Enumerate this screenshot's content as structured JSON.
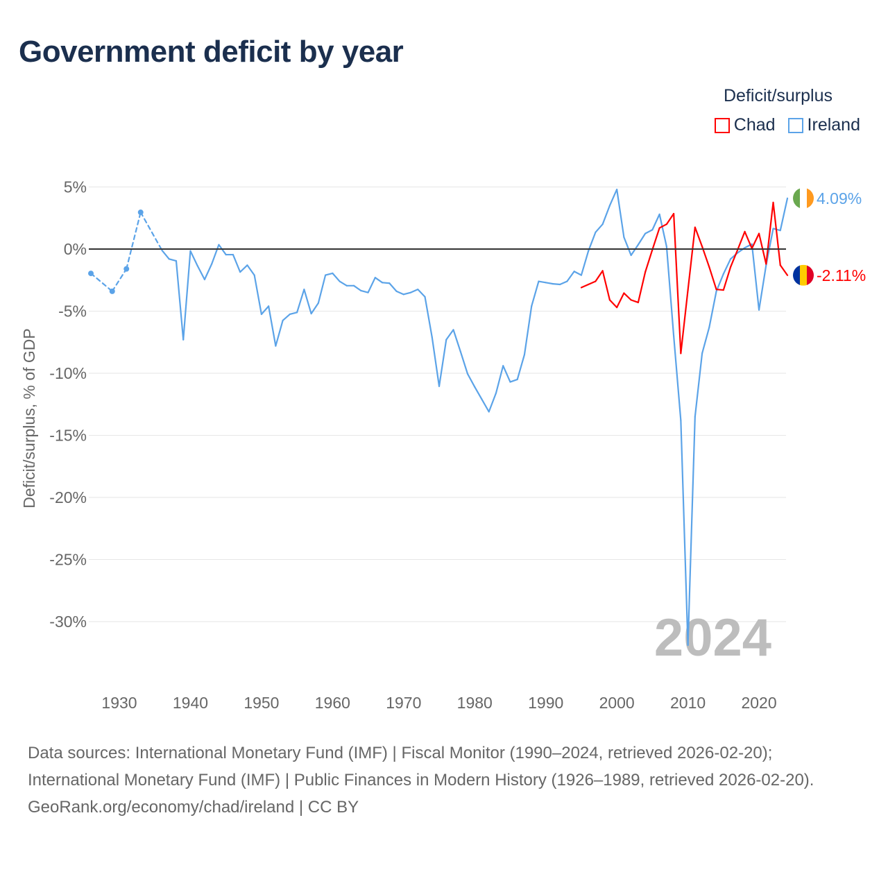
{
  "title": "Government deficit by year",
  "legend": {
    "title": "Deficit/surplus",
    "items": [
      {
        "name": "Chad",
        "color": "#ff0000"
      },
      {
        "name": "Ireland",
        "color": "#5ba3e8"
      }
    ]
  },
  "chart_data": {
    "type": "line",
    "title": "Government deficit by year",
    "ylabel": "Deficit/surplus, % of GDP",
    "xlabel": "",
    "ylim": [
      -33,
      5
    ],
    "xlim": [
      1926,
      2024
    ],
    "y_ticks": [
      "5%",
      "0%",
      "-5%",
      "-10%",
      "-15%",
      "-20%",
      "-25%",
      "-30%"
    ],
    "y_tick_values": [
      5,
      0,
      -5,
      -10,
      -15,
      -20,
      -25,
      -30
    ],
    "x_ticks": [
      "1930",
      "1940",
      "1950",
      "1960",
      "1970",
      "1980",
      "1990",
      "2000",
      "2010",
      "2020"
    ],
    "year_label": "2024",
    "grid": true,
    "series": [
      {
        "name": "Chad",
        "color": "#ff0000",
        "end_label": "-2.11%",
        "x": [
          1995,
          1996,
          1997,
          1998,
          1999,
          2000,
          2001,
          2002,
          2003,
          2004,
          2005,
          2006,
          2007,
          2008,
          2009,
          2010,
          2011,
          2012,
          2013,
          2014,
          2015,
          2016,
          2017,
          2018,
          2019,
          2020,
          2021,
          2022,
          2023,
          2024
        ],
        "values": [
          -3.1,
          -2.85,
          -2.6,
          -1.75,
          -4.1,
          -4.7,
          -3.55,
          -4.1,
          -4.3,
          -1.85,
          -0.05,
          1.7,
          2.0,
          2.85,
          -8.4,
          -3.3,
          1.75,
          0.2,
          -1.45,
          -3.25,
          -3.3,
          -1.45,
          -0.05,
          1.4,
          0.05,
          1.25,
          -1.2,
          3.75,
          -1.3,
          -2.11
        ]
      },
      {
        "name": "Ireland",
        "color": "#5ba3e8",
        "end_label": "4.09%",
        "x": [
          1926,
          1929,
          1931,
          1933,
          1936,
          1937,
          1938,
          1939,
          1940,
          1941,
          1942,
          1943,
          1944,
          1945,
          1946,
          1947,
          1948,
          1949,
          1950,
          1951,
          1952,
          1953,
          1954,
          1955,
          1956,
          1957,
          1958,
          1959,
          1960,
          1961,
          1962,
          1963,
          1964,
          1965,
          1966,
          1967,
          1968,
          1969,
          1970,
          1971,
          1972,
          1973,
          1974,
          1975,
          1976,
          1977,
          1978,
          1979,
          1980,
          1981,
          1982,
          1983,
          1984,
          1985,
          1986,
          1987,
          1988,
          1989,
          1990,
          1991,
          1992,
          1993,
          1994,
          1995,
          1996,
          1997,
          1998,
          1999,
          2000,
          2001,
          2002,
          2003,
          2004,
          2005,
          2006,
          2007,
          2008,
          2009,
          2010,
          2011,
          2012,
          2013,
          2014,
          2015,
          2016,
          2017,
          2018,
          2019,
          2020,
          2021,
          2022,
          2023,
          2024
        ],
        "values": [
          -1.96,
          -3.4,
          -1.6,
          2.96,
          -0.1,
          -0.8,
          -0.95,
          -7.3,
          -0.15,
          -1.35,
          -2.45,
          -1.2,
          0.35,
          -0.45,
          -0.45,
          -1.85,
          -1.3,
          -2.1,
          -5.25,
          -4.6,
          -7.8,
          -5.75,
          -5.25,
          -5.1,
          -3.25,
          -5.2,
          -4.35,
          -2.1,
          -1.95,
          -2.6,
          -2.95,
          -2.95,
          -3.35,
          -3.5,
          -2.3,
          -2.7,
          -2.75,
          -3.4,
          -3.65,
          -3.5,
          -3.25,
          -3.85,
          -7.1,
          -11.05,
          -7.3,
          -6.5,
          -8.25,
          -10.05,
          -11.1,
          -12.1,
          -13.1,
          -11.6,
          -9.4,
          -10.7,
          -10.5,
          -8.5,
          -4.6,
          -2.6,
          -2.7,
          -2.8,
          -2.85,
          -2.6,
          -1.8,
          -2.1,
          -0.15,
          1.35,
          2.0,
          3.5,
          4.8,
          0.95,
          -0.5,
          0.35,
          1.25,
          1.55,
          2.8,
          0.2,
          -7.0,
          -13.8,
          -31.9,
          -13.5,
          -8.4,
          -6.3,
          -3.4,
          -2.0,
          -0.8,
          -0.3,
          0.1,
          0.4,
          -4.9,
          -1.3,
          1.65,
          1.5,
          4.09
        ]
      }
    ]
  },
  "footer": {
    "sources": "Data sources: International Monetary Fund (IMF) | Fiscal Monitor (1990–2024, retrieved 2026-02-20); International Monetary Fund (IMF) | Public Finances in Modern History (1926–1989, retrieved 2026-02-20).",
    "credit": "GeoRank.org/economy/chad/ireland | CC BY"
  }
}
